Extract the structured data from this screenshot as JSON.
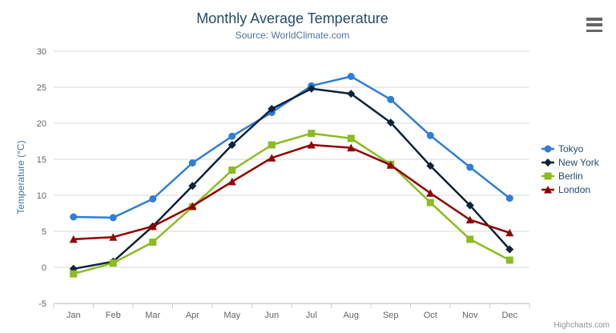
{
  "chart_data": {
    "type": "line",
    "title": "Monthly Average Temperature",
    "subtitle": "Source: WorldClimate.com",
    "categories": [
      "Jan",
      "Feb",
      "Mar",
      "Apr",
      "May",
      "Jun",
      "Jul",
      "Aug",
      "Sep",
      "Oct",
      "Nov",
      "Dec"
    ],
    "xlabel": "",
    "ylabel": "Temperature (°C)",
    "ylim": [
      -5,
      30
    ],
    "yticks": [
      -5,
      0,
      5,
      10,
      15,
      20,
      25,
      30
    ],
    "grid": true,
    "legend_position": "middle-right",
    "series": [
      {
        "name": "Tokyo",
        "color": "#2f7ed8",
        "marker": "circle",
        "values": [
          7.0,
          6.9,
          9.5,
          14.5,
          18.2,
          21.5,
          25.2,
          26.5,
          23.3,
          18.3,
          13.9,
          9.6
        ]
      },
      {
        "name": "New York",
        "color": "#0d233a",
        "marker": "diamond",
        "values": [
          -0.2,
          0.8,
          5.7,
          11.3,
          17.0,
          22.0,
          24.8,
          24.1,
          20.1,
          14.1,
          8.6,
          2.5
        ]
      },
      {
        "name": "Berlin",
        "color": "#8bbc21",
        "marker": "square",
        "values": [
          -0.9,
          0.6,
          3.5,
          8.4,
          13.5,
          17.0,
          18.6,
          17.9,
          14.3,
          9.0,
          3.9,
          1.0
        ]
      },
      {
        "name": "London",
        "color": "#910000",
        "marker": "triangle",
        "values": [
          3.9,
          4.2,
          5.7,
          8.5,
          11.9,
          15.2,
          17.0,
          16.6,
          14.2,
          10.3,
          6.6,
          4.8
        ]
      }
    ],
    "styles": {
      "grid_color": "#d8d8d8",
      "axis_line_color": "#c0d0e0",
      "tick_label_color": "#666666",
      "axis_title_color": "#4d759e",
      "title_color": "#274b6d",
      "subtitle_color": "#4d759e",
      "legend_text_color": "#274b6d"
    }
  },
  "credits": {
    "label": "Highcharts.com"
  }
}
